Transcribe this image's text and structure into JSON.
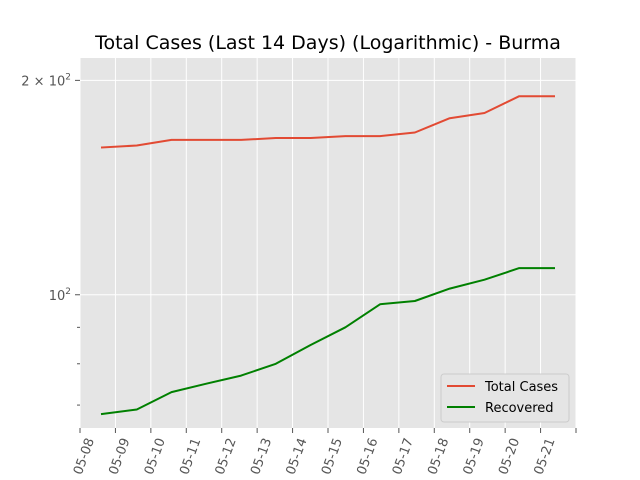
{
  "chart_data": {
    "type": "line",
    "title": "Total Cases (Last 14 Days) (Logarithmic) - Burma",
    "xlabel": "",
    "ylabel": "",
    "y_scale": "log",
    "ylim": [
      65,
      215
    ],
    "grid": true,
    "legend_position": "lower right",
    "x": [
      "05-08",
      "05-09",
      "05-10",
      "05-11",
      "05-12",
      "05-13",
      "05-14",
      "05-15",
      "05-16",
      "05-17",
      "05-18",
      "05-19",
      "05-20",
      "05-21"
    ],
    "x_ticks": [
      "05-08",
      "05-09",
      "05-10",
      "05-11",
      "05-12",
      "05-13",
      "05-14",
      "05-15",
      "05-16",
      "05-17",
      "05-18",
      "05-19",
      "05-20",
      "05-21"
    ],
    "y_ticks": [
      {
        "value": 100,
        "base": "10",
        "exp": "2"
      },
      {
        "value": 200,
        "base": "2 × 10",
        "exp": "2"
      }
    ],
    "series": [
      {
        "name": "Total Cases",
        "color": "#E24A33",
        "values": [
          161,
          162,
          165,
          165,
          165,
          166,
          166,
          167,
          167,
          169,
          177,
          180,
          190,
          190
        ]
      },
      {
        "name": "Recovered",
        "color": "#008000",
        "values": [
          68,
          69,
          73,
          75,
          77,
          80,
          85,
          90,
          97,
          98,
          102,
          105,
          109,
          109
        ]
      }
    ]
  }
}
